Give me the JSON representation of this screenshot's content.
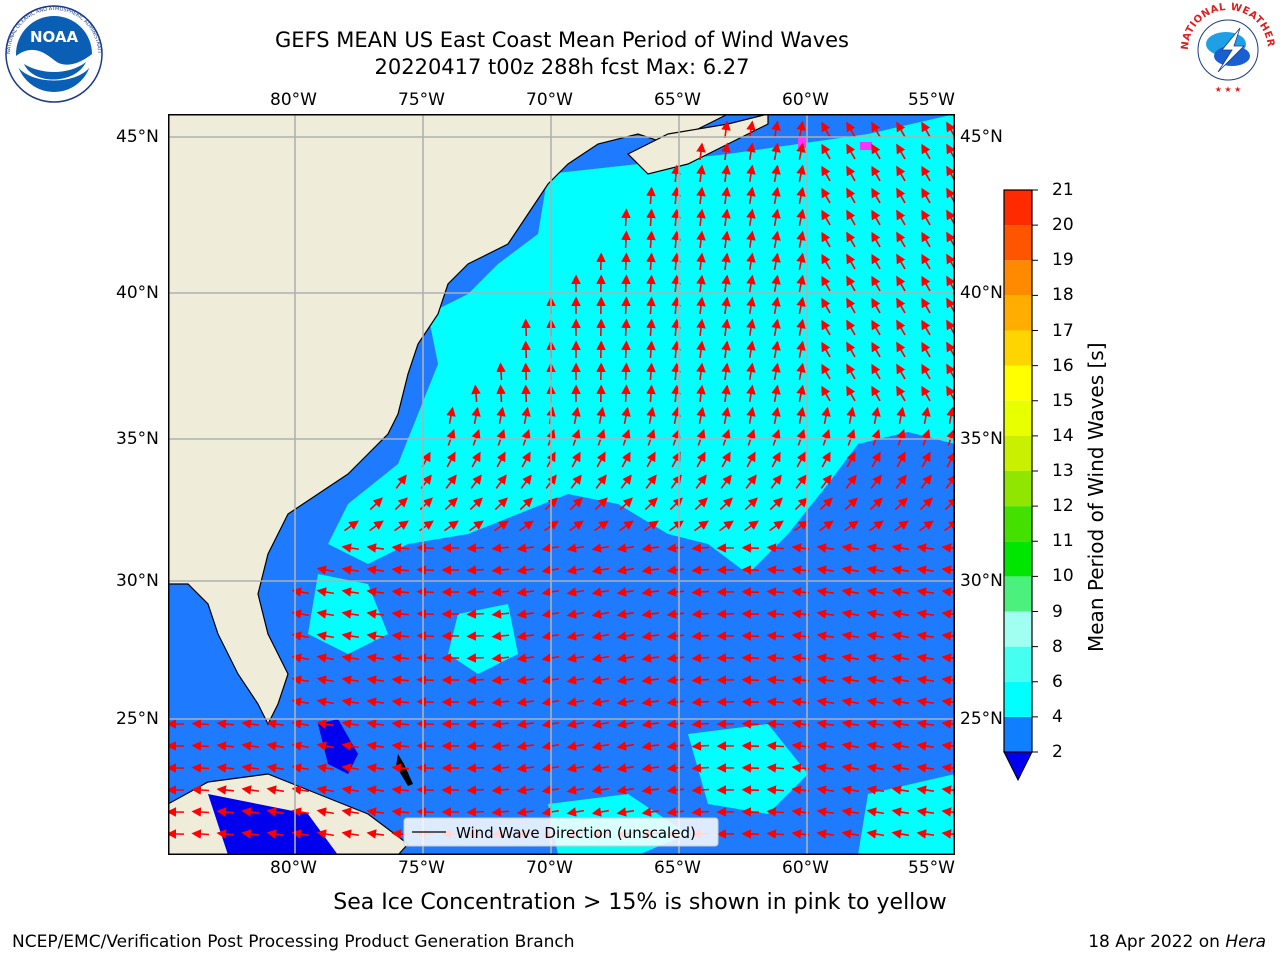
{
  "header": {
    "title_line1": "GEFS MEAN US East Coast Mean Period of Wind Waves",
    "title_line2": "20220417 t00z 288h fcst   Max: 6.27"
  },
  "logos": {
    "left": "noaa-logo",
    "left_text": "NOAA",
    "left_ring_text": "NATIONAL OCEANIC AND ATMOSPHERIC ADMINISTRATION · U.S. DEPARTMENT OF COMMERCE",
    "right": "nws-logo",
    "right_ring_text": "NATIONAL WEATHER SERVICE"
  },
  "map": {
    "lon_ticks": [
      "80°W",
      "75°W",
      "70°W",
      "65°W",
      "60°W",
      "55°W"
    ],
    "lat_ticks": [
      "45°N",
      "40°N",
      "35°N",
      "30°N",
      "25°N"
    ],
    "legend_label": "Wind Wave Direction (unscaled)",
    "colors": {
      "land": "#efedda",
      "ocean_2_4": "#1e7bff",
      "ocean_4_6": "#00ffff",
      "low": "#0000ee",
      "arrow": "#ff0000",
      "ice": "#ff33ff"
    }
  },
  "colorbar": {
    "label": "Mean Period of Wind Waves [s]",
    "ticks": [
      "2",
      "4",
      "6",
      "8",
      "9",
      "10",
      "11",
      "12",
      "13",
      "14",
      "15",
      "16",
      "17",
      "18",
      "19",
      "20",
      "21"
    ],
    "colors": [
      "#0f7fff",
      "#00ffff",
      "#45fff0",
      "#a0fff0",
      "#4cf07c",
      "#00e600",
      "#44e000",
      "#90e600",
      "#c8f000",
      "#e8ff00",
      "#ffff00",
      "#ffd500",
      "#ffae00",
      "#ff8a00",
      "#ff5500",
      "#ff2a00",
      "#ff0000"
    ]
  },
  "subtitle": "Sea Ice Concentration > 15% is shown in pink to yellow",
  "footer": {
    "left": "NCEP/EMC/Verification Post Processing Product Generation Branch",
    "right_date": "18 Apr 2022 on ",
    "right_host": "Hera"
  }
}
